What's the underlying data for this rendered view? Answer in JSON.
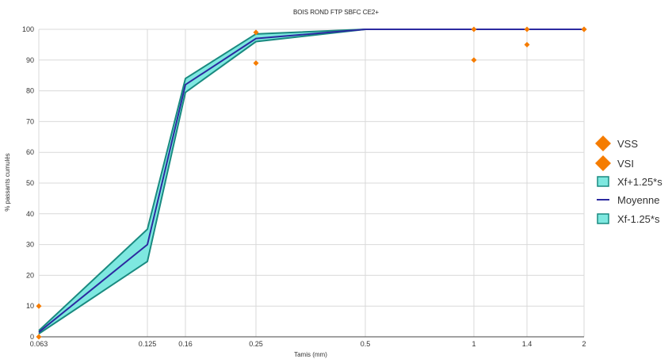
{
  "chart_data": {
    "type": "line",
    "title": "BOIS ROND FTP SBFC CE2+",
    "xlabel": "Tamis (mm)",
    "ylabel": "% passants cumulés",
    "x": [
      0.063,
      0.125,
      0.16,
      0.25,
      0.5,
      1,
      1.4,
      2
    ],
    "x_tick_labels": [
      "0.063",
      "0.125",
      "0.16",
      "0.25",
      "0.5",
      "1",
      "1.4",
      "2"
    ],
    "ylim": [
      0,
      100
    ],
    "y_ticks": [
      0,
      10,
      20,
      30,
      40,
      50,
      60,
      70,
      80,
      90,
      100
    ],
    "grid": true,
    "legend_position": "right",
    "series": [
      {
        "name": "VSS",
        "kind": "marker",
        "color": "#f57c00",
        "points": [
          [
            0.063,
            10
          ],
          [
            0.25,
            99
          ],
          [
            1,
            100
          ],
          [
            1.4,
            100
          ],
          [
            2,
            100
          ]
        ]
      },
      {
        "name": "VSI",
        "kind": "marker",
        "color": "#f57c00",
        "points": [
          [
            0.063,
            0
          ],
          [
            0.25,
            89
          ],
          [
            1,
            90
          ],
          [
            1.4,
            95
          ],
          [
            2,
            100
          ]
        ]
      },
      {
        "name": "Xf+1.25*s",
        "kind": "band-upper",
        "color": "#7ee8e0",
        "stroke": "#1a8a80",
        "values": [
          2,
          35,
          84,
          98.5,
          100,
          100,
          100,
          100
        ]
      },
      {
        "name": "Moyenne",
        "kind": "line",
        "color": "#2c2aa0",
        "values": [
          1.5,
          30,
          82,
          97,
          100,
          100,
          100,
          100
        ]
      },
      {
        "name": "Xf-1.25*s",
        "kind": "band-lower",
        "color": "#7ee8e0",
        "stroke": "#1a8a80",
        "values": [
          1,
          24.5,
          79.5,
          96,
          100,
          100,
          100,
          100
        ]
      }
    ]
  }
}
